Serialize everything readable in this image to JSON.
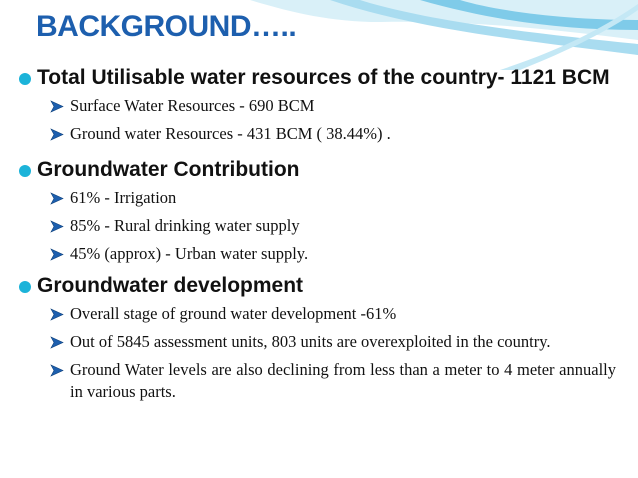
{
  "title": "BACKGROUND…..",
  "sections": [
    {
      "heading": "Total Utilisable water resources of the country- 1121 BCM",
      "items": [
        "Surface Water Resources - 690 BCM",
        "Ground water Resources - 431 BCM ( 38.44%) ."
      ]
    },
    {
      "heading": "Groundwater Contribution",
      "items": [
        "61% - Irrigation",
        "85%  - Rural drinking water supply",
        "45%  (approx) - Urban water supply."
      ]
    },
    {
      "heading": "Groundwater development",
      "items": [
        "Overall stage of ground water development -61%",
        "Out of 5845 assessment units, 803 units are overexploited in the country.",
        "Ground Water levels are also declining from less than a meter to 4 meter annually in various parts."
      ]
    }
  ]
}
